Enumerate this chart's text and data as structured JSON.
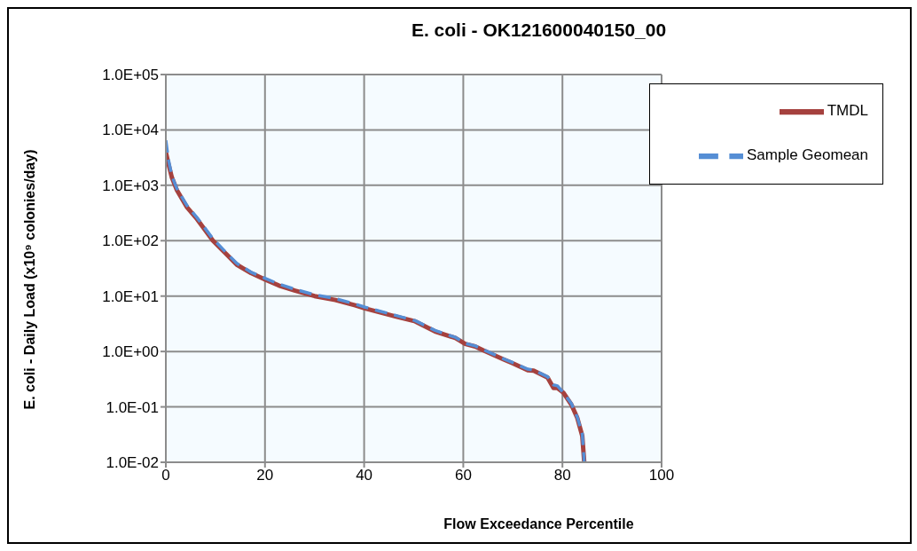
{
  "chart_data": {
    "type": "line",
    "title": "E. coli - OK121600040150_00",
    "xlabel": "Flow Exceedance Percentile",
    "ylabel": "E. coli - Daily Load (x10⁹ colonies/day)",
    "log": "y",
    "grid": true,
    "legend": "top right",
    "marker": "none",
    "xlim": [
      0,
      100
    ],
    "xticks": [
      0,
      20,
      40,
      60,
      80,
      100
    ],
    "ylim": [
      0.01,
      100000
    ],
    "yticks": [
      {
        "value": 0.01,
        "label": "1.0E-02"
      },
      {
        "value": 0.1,
        "label": "1.0E-01"
      },
      {
        "value": 1,
        "label": "1.0E+00"
      },
      {
        "value": 10,
        "label": "1.0E+01"
      },
      {
        "value": 100,
        "label": "1.0E+02"
      },
      {
        "value": 1000,
        "label": "1.0E+03"
      },
      {
        "value": 10000,
        "label": "1.0E+04"
      },
      {
        "value": 100000,
        "label": "1.0E+05"
      }
    ],
    "series": [
      {
        "name": "TMDL",
        "color": "#a5413e",
        "line_style": "solid",
        "x": [
          0,
          0.5,
          1.2,
          2.2,
          4.2,
          6.3,
          9.5,
          12.4,
          14.3,
          17.2,
          20,
          22.8,
          26.1,
          30,
          34.2,
          38.2,
          40.2,
          46.3,
          50.3,
          54.3,
          58.4,
          60.4,
          62.4,
          64,
          68.1,
          70,
          73,
          74.2,
          77,
          78.2,
          79,
          80.2,
          81.8,
          83,
          84,
          84.4
        ],
        "values": [
          4000,
          2500,
          1400,
          830,
          410,
          245,
          100,
          55,
          37,
          26,
          20,
          15.5,
          12.5,
          10,
          8.5,
          6.8,
          6,
          4.3,
          3.5,
          2.3,
          1.75,
          1.37,
          1.23,
          1.05,
          0.72,
          0.61,
          0.46,
          0.45,
          0.34,
          0.22,
          0.22,
          0.18,
          0.11,
          0.063,
          0.03,
          0.01
        ]
      },
      {
        "name": "Sample Geomean",
        "color": "#558ed5",
        "line_style": "dashed",
        "x": [
          0,
          0.5,
          1.2,
          2.2,
          4.2,
          6.3,
          9.5,
          12.4,
          14.3,
          17.2,
          20,
          22.8,
          26.1,
          30,
          34.2,
          38.2,
          40.2,
          46.3,
          50.3,
          54.3,
          58.4,
          60.4,
          62.4,
          64,
          68.1,
          70,
          73,
          74.2,
          77,
          78.2,
          79,
          80.2,
          81.8,
          83,
          84,
          84.4
        ],
        "values": [
          6500,
          3000,
          1500,
          880,
          440,
          260,
          108,
          58,
          39,
          27,
          21,
          16.5,
          13.2,
          10.6,
          9,
          7.2,
          6.3,
          4.5,
          3.6,
          2.4,
          1.8,
          1.4,
          1.26,
          1.08,
          0.74,
          0.63,
          0.48,
          0.46,
          0.35,
          0.25,
          0.24,
          0.18,
          0.115,
          0.065,
          0.033,
          0.01
        ]
      }
    ]
  }
}
